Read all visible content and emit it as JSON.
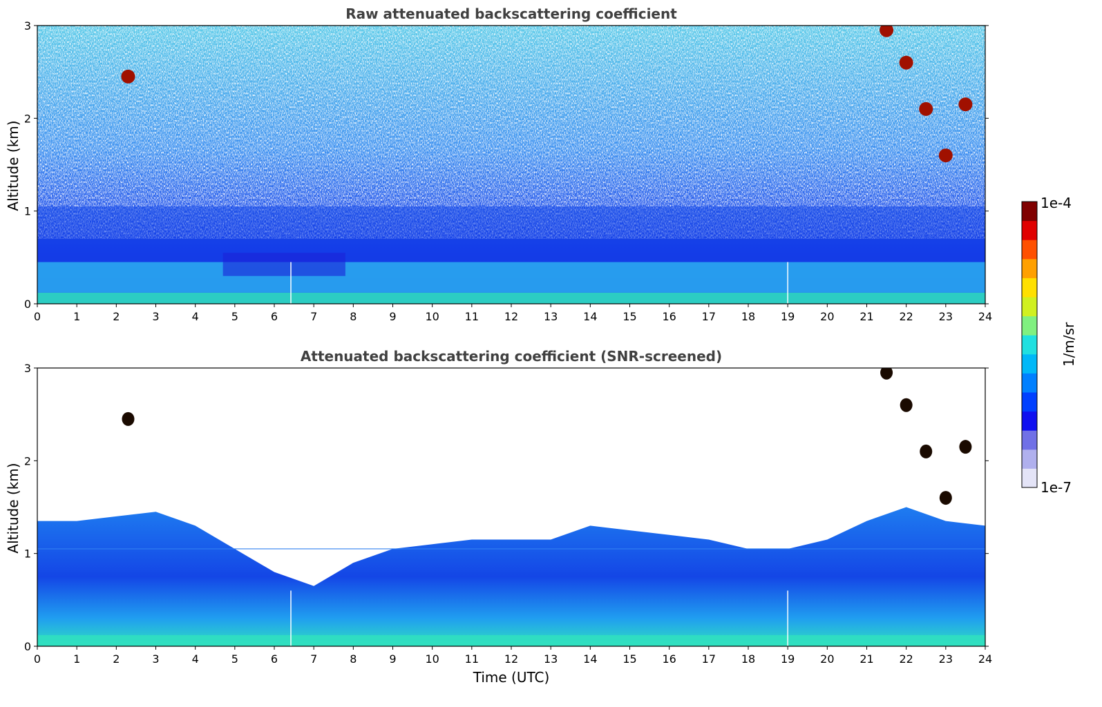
{
  "chart_data": [
    {
      "type": "heatmap",
      "title": "Raw attenuated backscattering coefficient",
      "ylabel": "Altitude (km)",
      "xlabel": "",
      "xlim": [
        0,
        24
      ],
      "ylim": [
        0,
        3
      ],
      "x_ticks": [
        "0",
        "1",
        "2",
        "3",
        "4",
        "5",
        "6",
        "7",
        "8",
        "9",
        "10",
        "11",
        "12",
        "13",
        "14",
        "15",
        "16",
        "17",
        "18",
        "19",
        "20",
        "21",
        "22",
        "23",
        "24"
      ],
      "y_ticks": [
        "0",
        "1",
        "2",
        "3"
      ],
      "layers": [
        {
          "name": "surface layer",
          "t0": 0,
          "t1": 24,
          "h0": 0,
          "h1": 0.12,
          "level": "cyan-green"
        },
        {
          "name": "mixed boundary layer",
          "t0": 0,
          "t1": 24,
          "h0": 0.12,
          "h1": 0.45,
          "level": "light blue"
        },
        {
          "name": "residual layer",
          "t0": 0,
          "t1": 24,
          "h0": 0.45,
          "h1": 1.05,
          "level": "blue"
        },
        {
          "name": "noise region",
          "t0": 0,
          "t1": 24,
          "h0": 1.05,
          "h1": 3.0,
          "level": "noisy blue/white"
        }
      ],
      "cloud_features": [
        {
          "t": 2.3,
          "h": 2.45,
          "level": "high"
        },
        {
          "t": 21.5,
          "h": 2.95,
          "level": "high"
        },
        {
          "t": 22.0,
          "h": 2.6,
          "level": "high"
        },
        {
          "t": 22.5,
          "h": 2.1,
          "level": "high"
        },
        {
          "t": 23.0,
          "h": 1.6,
          "level": "high"
        },
        {
          "t": 23.5,
          "h": 2.15,
          "level": "high"
        }
      ],
      "missing_profiles": [
        6.42,
        19.0
      ]
    },
    {
      "type": "heatmap",
      "title": "Attenuated backscattering coefficient (SNR-screened)",
      "ylabel": "Altitude (km)",
      "xlabel": "Time (UTC)",
      "xlim": [
        0,
        24
      ],
      "ylim": [
        0,
        3
      ],
      "x_ticks": [
        "0",
        "1",
        "2",
        "3",
        "4",
        "5",
        "6",
        "7",
        "8",
        "9",
        "10",
        "11",
        "12",
        "13",
        "14",
        "15",
        "16",
        "17",
        "18",
        "19",
        "20",
        "21",
        "22",
        "23",
        "24"
      ],
      "y_ticks": [
        "0",
        "1",
        "2",
        "3"
      ],
      "screened_top_km": [
        {
          "t": 0,
          "h": 1.35
        },
        {
          "t": 1,
          "h": 1.35
        },
        {
          "t": 2,
          "h": 1.4
        },
        {
          "t": 3,
          "h": 1.45
        },
        {
          "t": 4,
          "h": 1.3
        },
        {
          "t": 5,
          "h": 1.05
        },
        {
          "t": 6,
          "h": 0.8
        },
        {
          "t": 7,
          "h": 0.65
        },
        {
          "t": 8,
          "h": 0.9
        },
        {
          "t": 9,
          "h": 1.05
        },
        {
          "t": 10,
          "h": 1.1
        },
        {
          "t": 11,
          "h": 1.15
        },
        {
          "t": 12,
          "h": 1.15
        },
        {
          "t": 13,
          "h": 1.15
        },
        {
          "t": 14,
          "h": 1.3
        },
        {
          "t": 15,
          "h": 1.25
        },
        {
          "t": 16,
          "h": 1.2
        },
        {
          "t": 17,
          "h": 1.15
        },
        {
          "t": 18,
          "h": 1.05
        },
        {
          "t": 19,
          "h": 1.05
        },
        {
          "t": 20,
          "h": 1.15
        },
        {
          "t": 21,
          "h": 1.35
        },
        {
          "t": 22,
          "h": 1.5
        },
        {
          "t": 23,
          "h": 1.35
        },
        {
          "t": 24,
          "h": 1.3
        }
      ],
      "cloud_features": [
        {
          "t": 2.3,
          "h": 2.45,
          "level": "saturated"
        },
        {
          "t": 21.5,
          "h": 2.95,
          "level": "saturated"
        },
        {
          "t": 22.0,
          "h": 2.6,
          "level": "saturated"
        },
        {
          "t": 22.5,
          "h": 2.1,
          "level": "saturated"
        },
        {
          "t": 23.0,
          "h": 1.6,
          "level": "saturated"
        },
        {
          "t": 23.5,
          "h": 2.15,
          "level": "saturated"
        }
      ],
      "missing_profiles": [
        6.42,
        19.0
      ]
    }
  ],
  "colorbar": {
    "max_label": "1e-4",
    "min_label": "1e-7",
    "unit_label": "1/m/sr",
    "colors": [
      "#e4e4f7",
      "#b0b0ee",
      "#7070e6",
      "#1010f0",
      "#0040ff",
      "#0080ff",
      "#00b8f8",
      "#20e0e0",
      "#80f080",
      "#d0f020",
      "#ffe000",
      "#ffa000",
      "#ff5000",
      "#e00000",
      "#800000"
    ]
  }
}
